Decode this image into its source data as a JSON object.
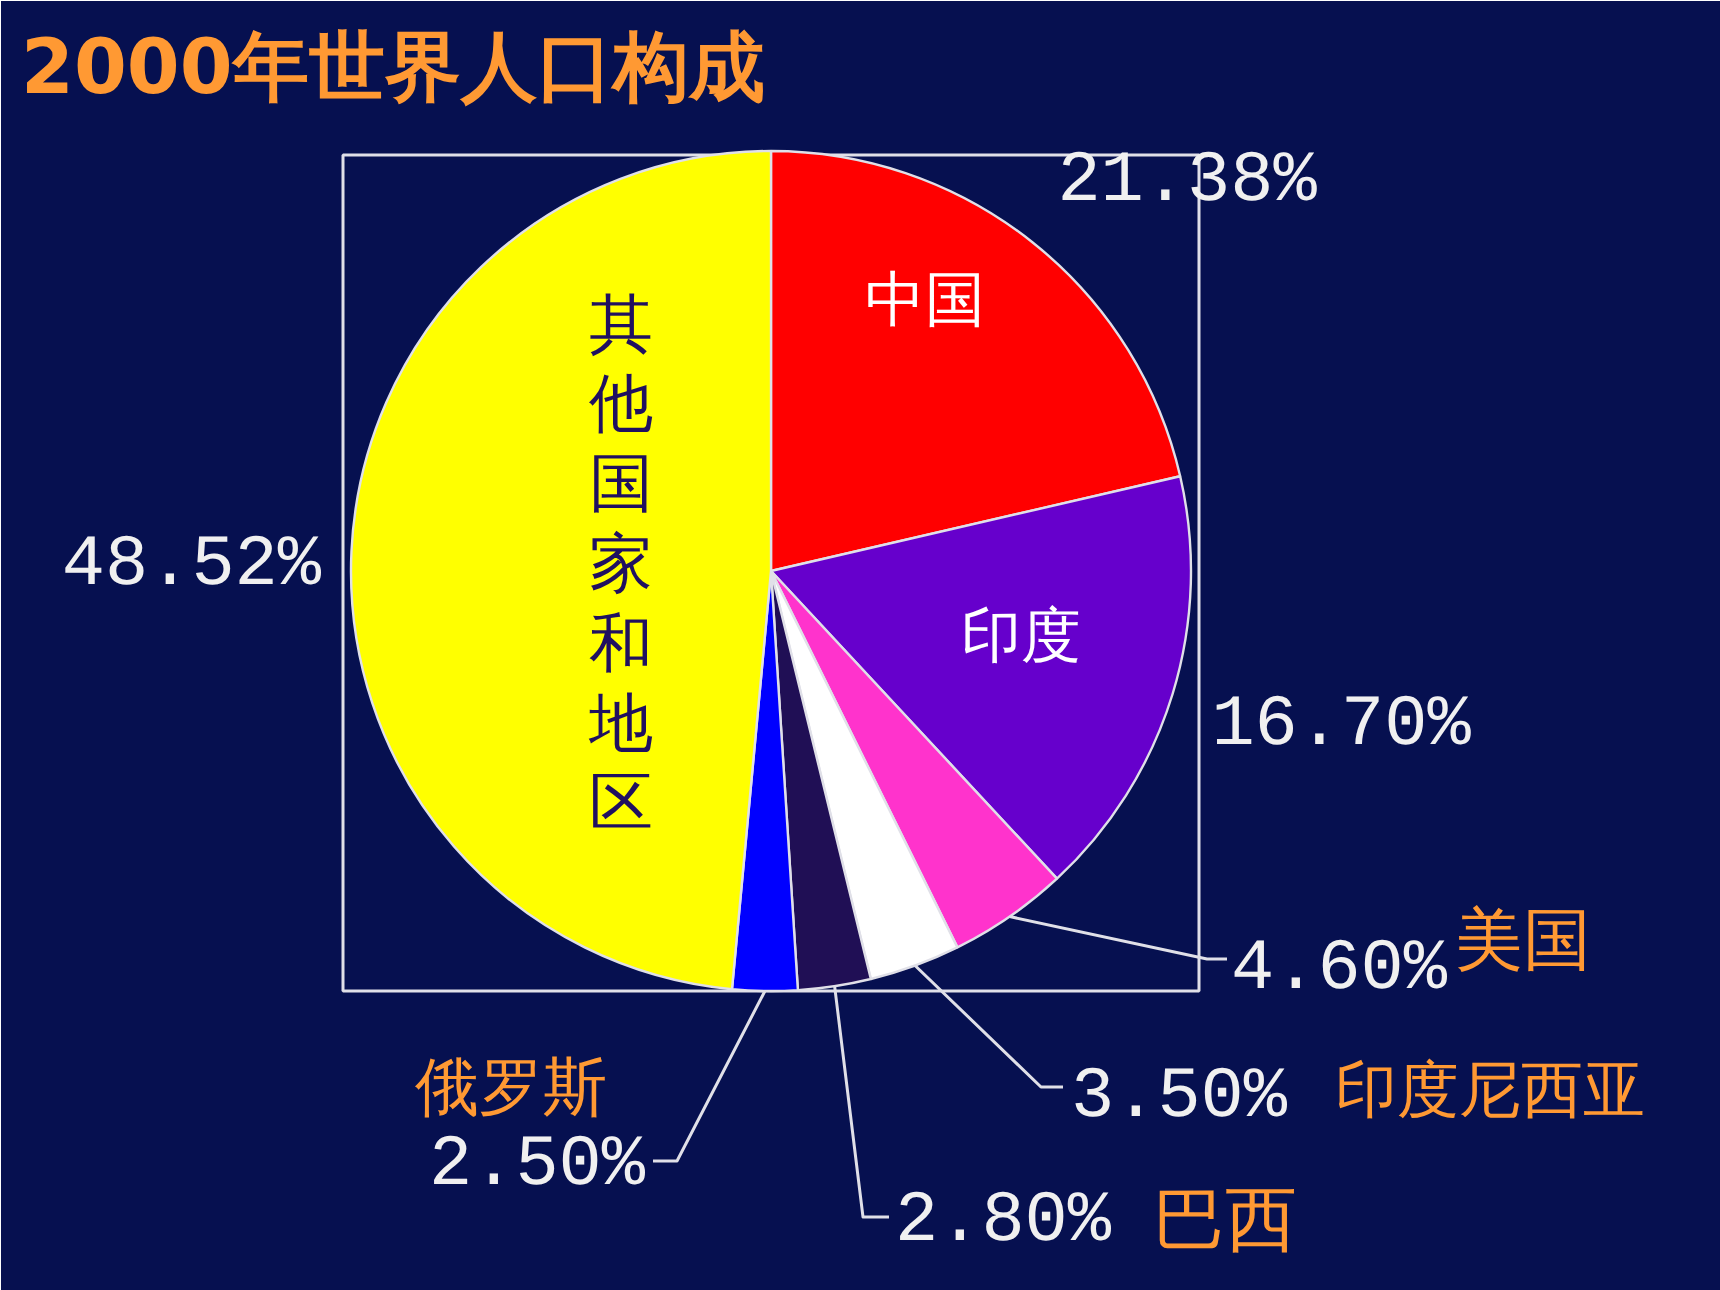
{
  "chart_data": {
    "type": "pie",
    "title": "2000年世界人口构成",
    "categories": [
      "中国",
      "印度",
      "美国",
      "印度尼西亚",
      "巴西",
      "俄罗斯",
      "其他国家和地区"
    ],
    "values": [
      21.38,
      16.7,
      4.6,
      3.5,
      2.8,
      2.5,
      48.52
    ],
    "colors": [
      "#ff0000",
      "#6600cc",
      "#ff33cc",
      "#ffffff",
      "#200f55",
      "#0000ff",
      "#ffff00"
    ],
    "value_labels": [
      "21.38%",
      "16.70%",
      "4.60%",
      "3.50%",
      "2.80%",
      "2.50%",
      "48.52%"
    ]
  }
}
